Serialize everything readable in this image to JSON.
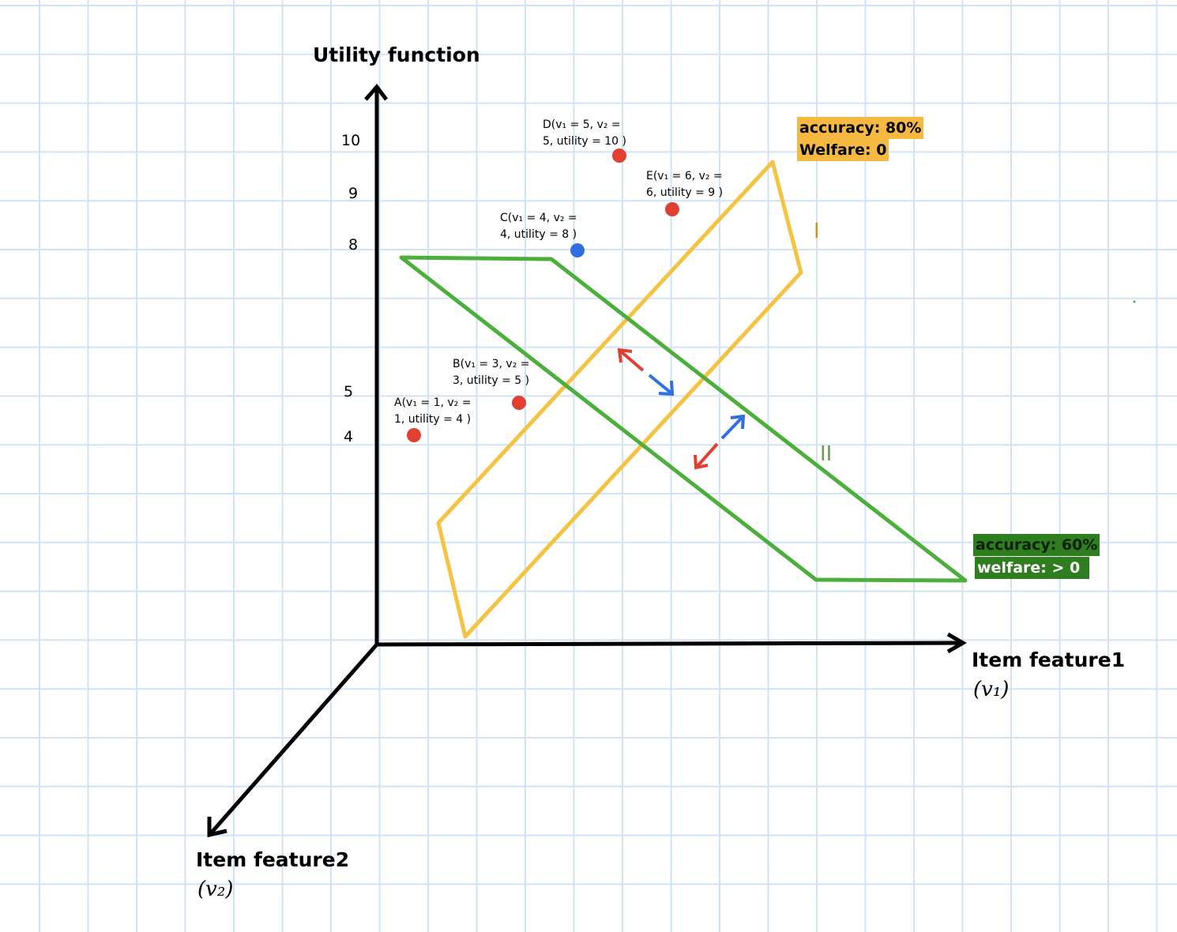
{
  "axes": {
    "y_title": "Utility function",
    "x_title": "Item feature1",
    "x_var": "(v₁)",
    "z_title": "Item feature2",
    "z_var": "(v₂)"
  },
  "ticks": [
    "10",
    "9",
    "8",
    "5",
    "4"
  ],
  "points": [
    {
      "id": "A",
      "line1": "A(v₁ = 1, v₂ =",
      "line2": "1, utility = 4 )",
      "color": "#e0402f"
    },
    {
      "id": "B",
      "line1": "B(v₁ = 3, v₂ =",
      "line2": "3, utility = 5 )",
      "color": "#e0402f"
    },
    {
      "id": "C",
      "line1": "C(v₁ = 4, v₂ =",
      "line2": "4, utility = 8 )",
      "color": "#2f6fe0"
    },
    {
      "id": "D",
      "line1": "D(v₁ = 5, v₂ =",
      "line2": "5, utility = 10 )",
      "color": "#e0402f"
    },
    {
      "id": "E",
      "line1": "E(v₁ = 6, v₂ =",
      "line2": "6, utility = 9 )",
      "color": "#e0402f"
    }
  ],
  "planes": {
    "yellow": {
      "label": "I",
      "accuracy": "accuracy: 80%",
      "welfare": "Welfare: 0",
      "color": "#f5c242"
    },
    "green": {
      "label": "II",
      "accuracy": "accuracy: 60%",
      "welfare": "welfare:  > 0",
      "color": "#4caf3c"
    }
  },
  "colors": {
    "grid": "#cfe3f5",
    "axis": "#000000",
    "arrow_red": "#e0402f",
    "arrow_blue": "#2f6fe0"
  }
}
